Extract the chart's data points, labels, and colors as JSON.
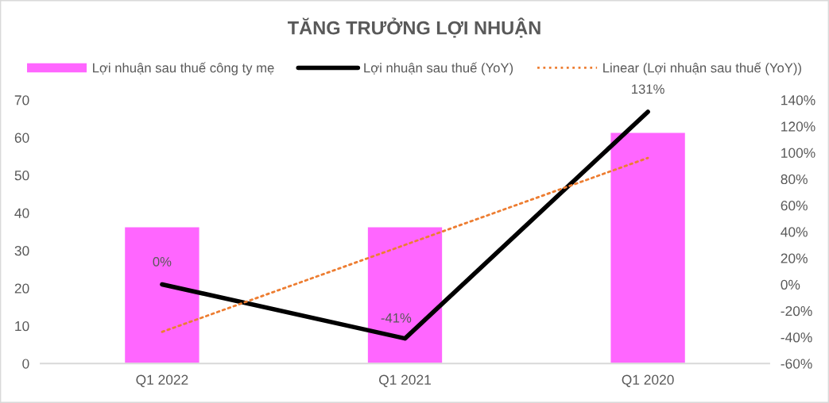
{
  "chart_data": {
    "type": "bar",
    "title": "TĂNG TRƯỞNG LỢI NHUẬN",
    "categories": [
      "Q1 2022",
      "Q1 2021",
      "Q1 2020"
    ],
    "series": [
      {
        "name": "Lợi nhuận sau thuế công ty mẹ",
        "color": "#ff66ff",
        "values": [
          36.3,
          36.3,
          61.4
        ]
      },
      {
        "name": "Lợi nhuận sau thuế (YoY)",
        "type": "line",
        "axis": "y2",
        "color": "#000000",
        "values": [
          0,
          -41,
          131
        ],
        "value_labels": [
          "0%",
          "-41%",
          "131%"
        ]
      },
      {
        "name": "Linear (Lợi nhuận sau thuế (YoY))",
        "type": "line",
        "axis": "y2",
        "color": "#ed7d31",
        "line_style": "dotted",
        "values": [
          -36,
          30,
          96
        ]
      }
    ],
    "ylim": [
      0,
      70
    ],
    "yticks": [
      0,
      10,
      20,
      30,
      40,
      50,
      60,
      70
    ],
    "y2lim": [
      -60,
      140
    ],
    "y2ticks": [
      {
        "value": -60,
        "label": "-60%"
      },
      {
        "value": -40,
        "label": "-40%"
      },
      {
        "value": -20,
        "label": "-20%"
      },
      {
        "value": 0,
        "label": "0%"
      },
      {
        "value": 20,
        "label": "20%"
      },
      {
        "value": 40,
        "label": "40%"
      },
      {
        "value": 60,
        "label": "60%"
      },
      {
        "value": 80,
        "label": "80%"
      },
      {
        "value": 100,
        "label": "100%"
      },
      {
        "value": 120,
        "label": "120%"
      },
      {
        "value": 140,
        "label": "140%"
      }
    ],
    "legend": "top",
    "grid": false
  }
}
